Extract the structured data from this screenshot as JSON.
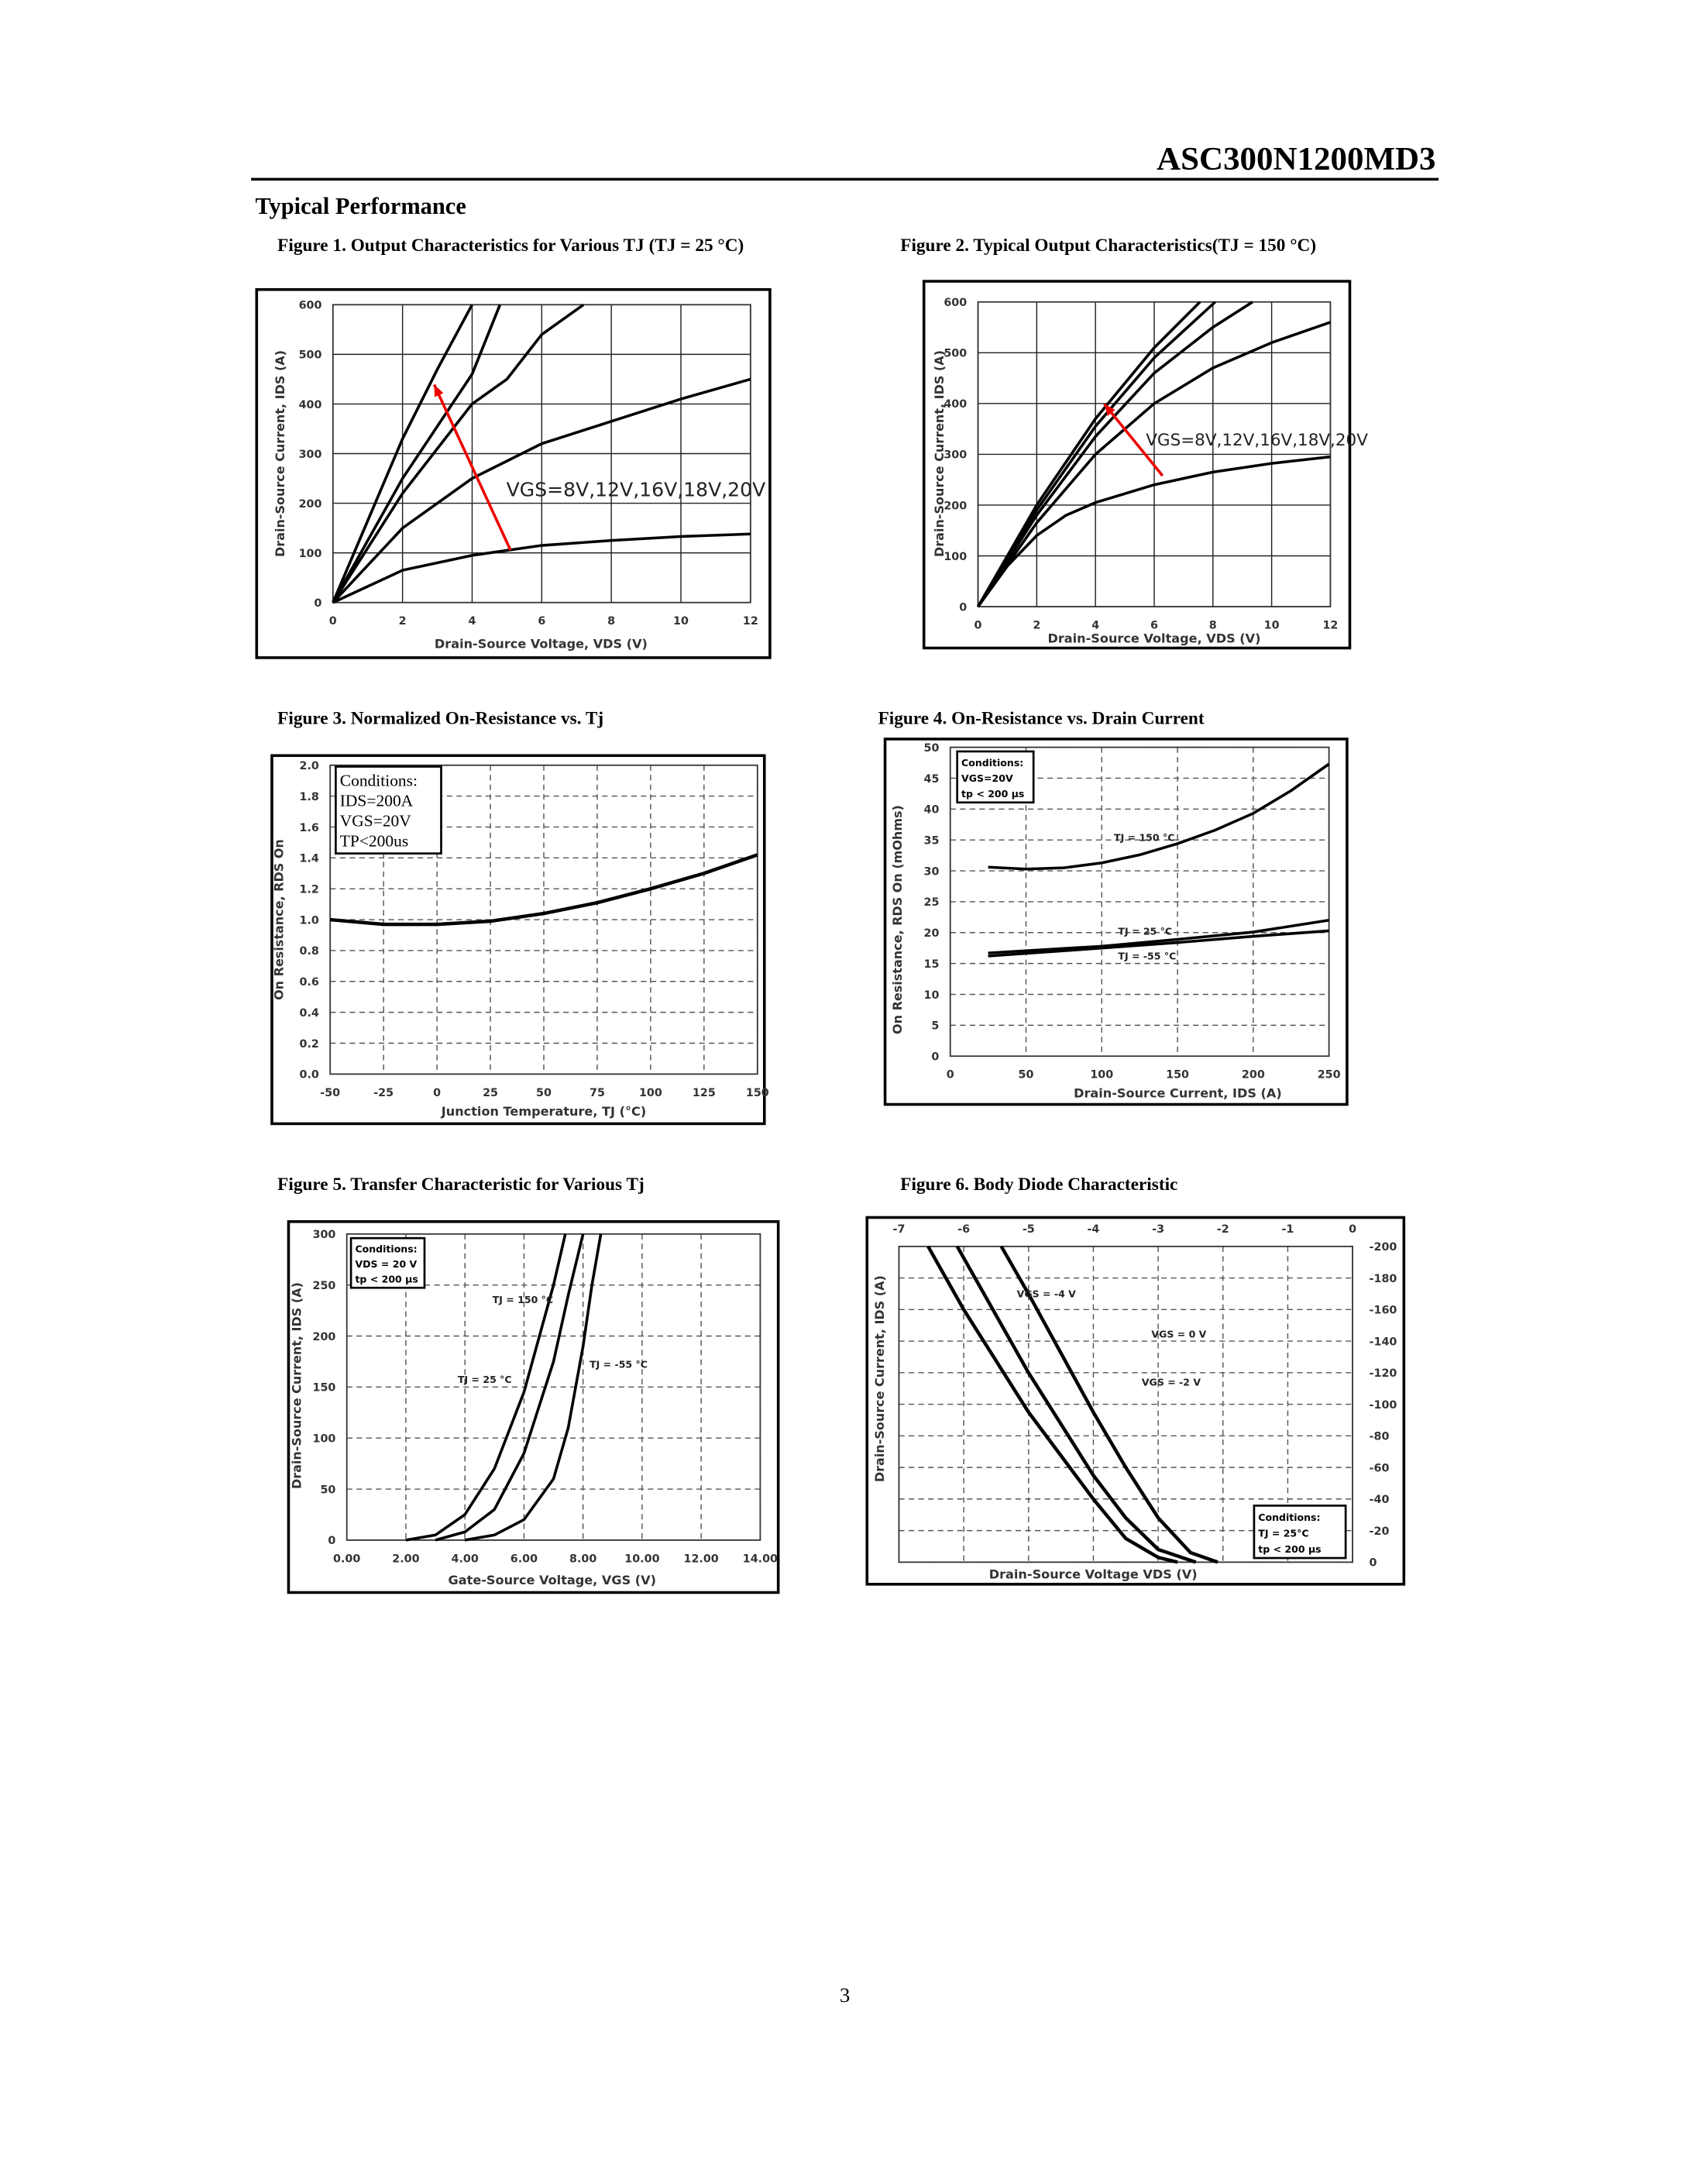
{
  "header": {
    "title": "ASC300N1200MD3"
  },
  "section_title": "Typical Performance",
  "page_number": 3,
  "chart_data": [
    {
      "type": "line",
      "title": "Figure 1. Output Characteristics for Various TJ (TJ = 25 °C)",
      "xlabel": "Drain-Source Voltage, VDS (V)",
      "ylabel": "Drain-Source Current, IDS (A)",
      "xlim": [
        0,
        12
      ],
      "xticks": [
        0,
        2,
        4,
        6,
        8,
        10,
        12
      ],
      "ylim": [
        0,
        600
      ],
      "yticks": [
        0,
        100,
        200,
        300,
        400,
        500,
        600
      ],
      "grid": "solid",
      "annotations": [
        "VGS=8V,12V,16V,18V,20V"
      ],
      "series": [
        {
          "color": "#000000",
          "x": [
            0,
            1,
            2,
            3,
            4
          ],
          "values": [
            0,
            165,
            330,
            470,
            600
          ]
        },
        {
          "color": "#000000",
          "x": [
            0,
            2,
            4,
            4.8
          ],
          "values": [
            0,
            250,
            460,
            600
          ]
        },
        {
          "color": "#000000",
          "x": [
            0,
            2,
            4,
            5,
            6,
            7.2
          ],
          "values": [
            0,
            220,
            400,
            450,
            540,
            600
          ]
        },
        {
          "color": "#000000",
          "x": [
            0,
            2,
            4,
            6,
            8,
            10,
            12
          ],
          "values": [
            0,
            150,
            250,
            320,
            365,
            410,
            450
          ]
        },
        {
          "color": "#000000",
          "x": [
            0,
            2,
            4,
            6,
            8,
            10,
            12
          ],
          "values": [
            0,
            65,
            95,
            115,
            125,
            133,
            138
          ]
        }
      ]
    },
    {
      "type": "line",
      "title": "Figure 2. Typical Output Characteristics(TJ = 150 °C)",
      "xlabel": "Drain-Source Voltage, VDS (V)",
      "ylabel": "Drain-Source Current, IDS (A)",
      "xlim": [
        0,
        12
      ],
      "xticks": [
        0,
        2,
        4,
        6,
        8,
        10,
        12
      ],
      "ylim": [
        0,
        600
      ],
      "yticks": [
        0,
        100,
        200,
        300,
        400,
        500,
        600
      ],
      "grid": "solid",
      "annotations": [
        "VGS=8V,12V,16V,18V,20V"
      ],
      "series": [
        {
          "color": "#000000",
          "x": [
            0,
            2,
            4,
            6,
            7.56
          ],
          "values": [
            0,
            200,
            370,
            510,
            600
          ]
        },
        {
          "color": "#000000",
          "x": [
            0,
            2,
            4,
            6,
            8.08
          ],
          "values": [
            0,
            190,
            355,
            490,
            600
          ]
        },
        {
          "color": "#000000",
          "x": [
            0,
            2,
            4,
            6,
            8,
            9.35
          ],
          "values": [
            0,
            180,
            335,
            460,
            550,
            600
          ]
        },
        {
          "color": "#000000",
          "x": [
            0,
            2,
            4,
            6,
            8,
            10,
            12
          ],
          "values": [
            0,
            165,
            300,
            400,
            470,
            520,
            560
          ]
        },
        {
          "color": "#000000",
          "x": [
            0,
            1,
            2,
            3,
            4,
            6,
            8,
            10,
            12
          ],
          "values": [
            0,
            80,
            140,
            180,
            205,
            240,
            265,
            282,
            295
          ]
        }
      ]
    },
    {
      "type": "line",
      "title": "Figure 3. Normalized On-Resistance vs. Tj",
      "xlabel": "Junction Temperature, TJ (°C)",
      "ylabel": "On Resistance, RDS On",
      "xlim": [
        -50,
        150
      ],
      "xticks": [
        -50,
        -25,
        0,
        25,
        50,
        75,
        100,
        125,
        150
      ],
      "ylim": [
        0,
        2
      ],
      "yticks": [
        {
          "value": 0,
          "label": "0.0"
        },
        0.2,
        0.4,
        0.6,
        0.8,
        {
          "value": 1,
          "label": "1.0"
        },
        1.2,
        1.4,
        1.6,
        1.8,
        {
          "value": 2,
          "label": "2.0"
        }
      ],
      "grid": "dashed",
      "conditions": [
        "Conditions:",
        "IDS=200A",
        "VGS=20V",
        "TP<200us"
      ],
      "series": [
        {
          "color": "#000000",
          "x": [
            -50,
            -25,
            0,
            25,
            50,
            75,
            100,
            125,
            150
          ],
          "values": [
            1.0,
            0.97,
            0.97,
            0.99,
            1.04,
            1.11,
            1.2,
            1.3,
            1.42
          ]
        }
      ]
    },
    {
      "type": "line",
      "title": "Figure 4. On-Resistance vs. Drain Current",
      "xlabel": "Drain-Source Current, IDS (A)",
      "ylabel": "On Resistance, RDS On (mOhms)",
      "xlim": [
        0,
        250
      ],
      "xticks": [
        0,
        50,
        100,
        150,
        200,
        250
      ],
      "ylim": [
        0,
        50
      ],
      "yticks": [
        0,
        5,
        10,
        15,
        20,
        25,
        30,
        35,
        40,
        45,
        50
      ],
      "grid": "dashed",
      "conditions": [
        "Conditions:",
        "VGS=20V",
        "tp < 200 µs"
      ],
      "annotations": [
        "TJ = 150 °C",
        "TJ = 25 °C",
        "TJ = -55 °C"
      ],
      "series": [
        {
          "color": "#000000",
          "x": [
            25,
            50,
            75,
            100,
            125,
            150,
            175,
            200,
            225,
            250
          ],
          "values": [
            30.6,
            30.3,
            30.5,
            31.3,
            32.6,
            34.4,
            36.6,
            39.3,
            43,
            47.3
          ]
        },
        {
          "color": "#000000",
          "x": [
            25,
            100,
            150,
            200,
            250
          ],
          "values": [
            16.7,
            17.8,
            18.9,
            20.1,
            22
          ]
        },
        {
          "color": "#000000",
          "x": [
            25,
            100,
            150,
            200,
            250
          ],
          "values": [
            16.2,
            17.5,
            18.4,
            19.4,
            20.3
          ]
        }
      ]
    },
    {
      "type": "line",
      "title": "Figure 5. Transfer Characteristic for Various Tj",
      "xlabel": "Gate-Source Voltage, VGS (V)",
      "ylabel": "Drain-Source Current, IDS (A)",
      "xlim": [
        0,
        14
      ],
      "xticks": [
        {
          "value": 0,
          "label": "0.00"
        },
        {
          "value": 2,
          "label": "2.00"
        },
        {
          "value": 4,
          "label": "4.00"
        },
        {
          "value": 6,
          "label": "6.00"
        },
        {
          "value": 8,
          "label": "8.00"
        },
        {
          "value": 10,
          "label": "10.00"
        },
        {
          "value": 12,
          "label": "12.00"
        },
        {
          "value": 14,
          "label": "14.00"
        }
      ],
      "ylim": [
        0,
        300
      ],
      "yticks": [
        0,
        50,
        100,
        150,
        200,
        250,
        300
      ],
      "grid": "dashed",
      "conditions": [
        "Conditions:",
        "VDS = 20 V",
        "tp < 200 µs"
      ],
      "annotations": [
        "TJ = 150 °C",
        "TJ = 25 °C",
        "TJ = -55 °C"
      ],
      "series": [
        {
          "color": "#000000",
          "x": [
            2,
            3,
            4,
            5,
            6,
            7,
            7.4
          ],
          "values": [
            0,
            5,
            25,
            70,
            145,
            250,
            300
          ]
        },
        {
          "color": "#000000",
          "x": [
            3,
            4,
            5,
            6,
            7,
            7.5,
            8.0
          ],
          "values": [
            0,
            8,
            30,
            85,
            175,
            240,
            300
          ]
        },
        {
          "color": "#000000",
          "x": [
            4,
            5,
            6,
            7,
            7.5,
            8,
            8.3,
            8.6
          ],
          "values": [
            0,
            5,
            20,
            60,
            110,
            190,
            250,
            300
          ]
        }
      ]
    },
    {
      "type": "line",
      "title": "Figure 6. Body Diode Characteristic",
      "xlabel": "Drain-Source Voltage VDS (V)",
      "ylabel": "Drain-Source Current, IDS (A)",
      "xlim": [
        -7,
        0
      ],
      "xticks": [
        -7,
        -6,
        -5,
        -4,
        -3,
        -2,
        -1,
        0
      ],
      "ylim": [
        0,
        -200
      ],
      "yticks": [
        0,
        -20,
        -40,
        -60,
        -80,
        -100,
        -120,
        -140,
        -160,
        -180,
        -200
      ],
      "grid": "dashed",
      "conditions": [
        "Conditions:",
        "TJ = 25°C",
        "tp < 200 µs"
      ],
      "annotations": [
        "VGS = -4 V",
        "VGS = 0 V",
        "VGS = -2 V"
      ],
      "series": [
        {
          "color": "#000000",
          "x": [
            -6.55,
            -6,
            -5,
            -4,
            -3.5,
            -3,
            -2.7
          ],
          "values": [
            -200,
            -160,
            -95,
            -40,
            -15,
            -3,
            0
          ]
        },
        {
          "color": "#000000",
          "x": [
            -6.1,
            -5,
            -4,
            -3.5,
            -3,
            -2.42
          ],
          "values": [
            -200,
            -120,
            -55,
            -28,
            -8,
            0
          ]
        },
        {
          "color": "#000000",
          "x": [
            -5.42,
            -5,
            -4,
            -3.5,
            -3,
            -2.5,
            -2.08
          ],
          "values": [
            -200,
            -170,
            -95,
            -60,
            -28,
            -6,
            0
          ]
        }
      ]
    }
  ]
}
